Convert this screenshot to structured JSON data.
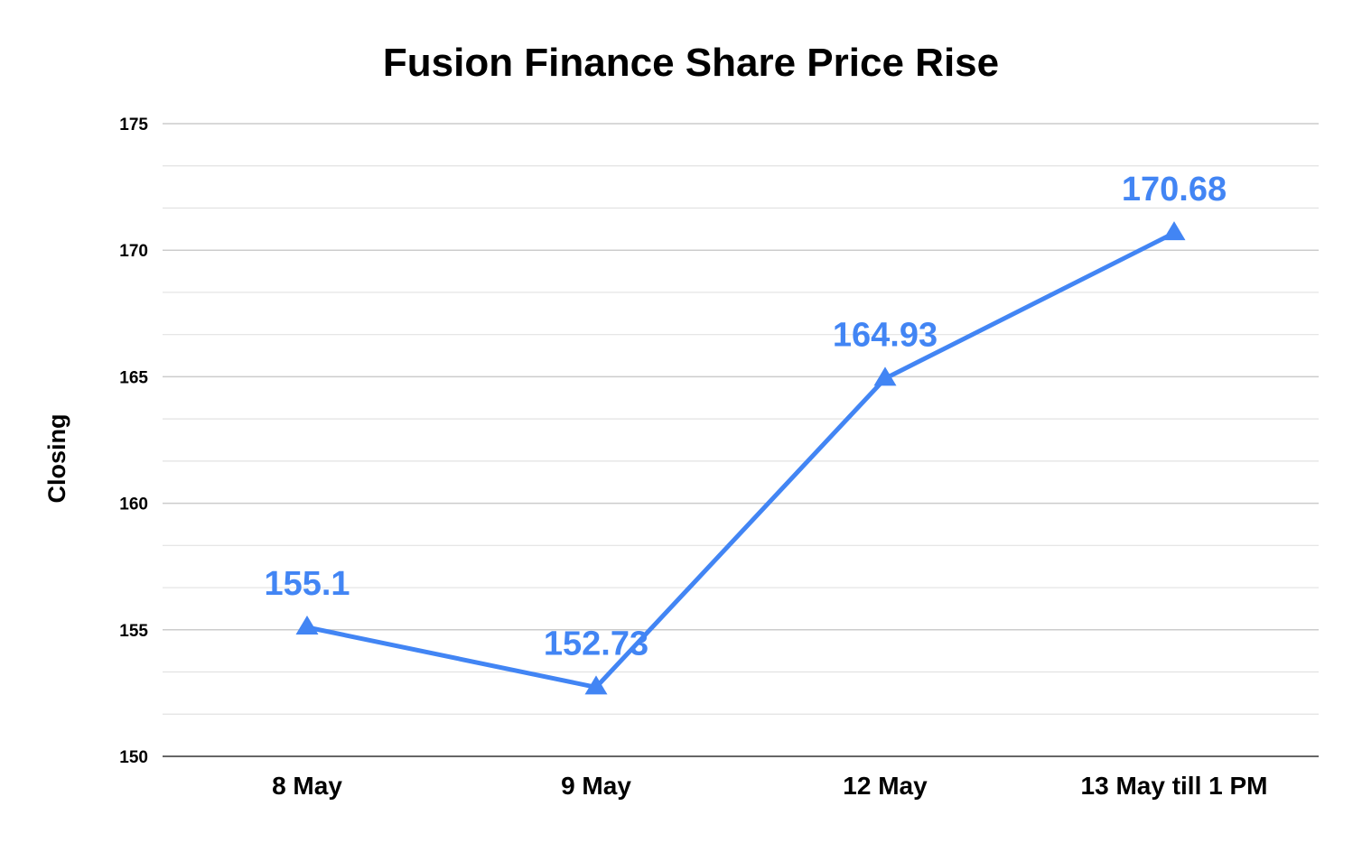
{
  "chart_data": {
    "type": "line",
    "title": "Fusion Finance Share Price Rise",
    "xlabel": "",
    "ylabel": "Closing",
    "categories": [
      "8 May",
      "9 May",
      "12 May",
      "13 May till 1 PM"
    ],
    "series": [
      {
        "values": [
          155.1,
          152.73,
          164.93,
          170.68
        ],
        "color": "#4285f4",
        "marker": "triangle"
      }
    ],
    "data_labels": [
      "155.1",
      "152.73",
      "164.93",
      "170.68"
    ],
    "yticks": [
      "150",
      "155",
      "160",
      "165",
      "170",
      "175"
    ],
    "ylim": [
      150,
      175
    ],
    "grid": true,
    "minor_grid": true,
    "legend": "none"
  }
}
